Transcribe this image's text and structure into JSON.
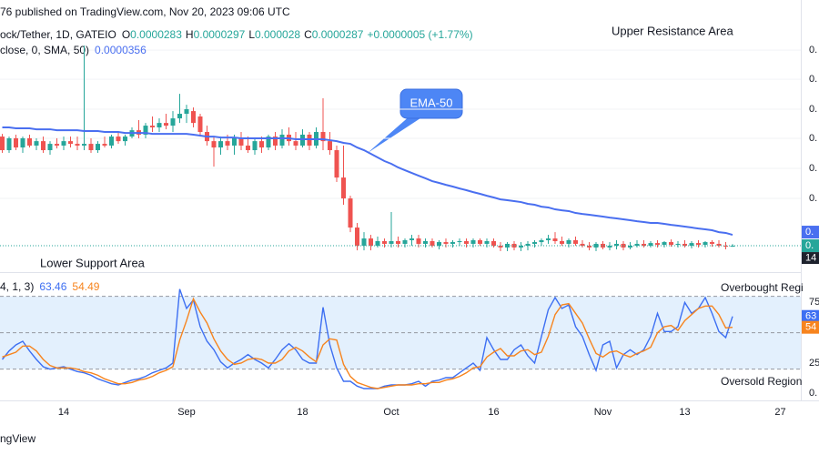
{
  "header": {
    "published": "76 published on TradingView.com, Nov 20, 2023 09:06 UTC",
    "symbol": "ock/Tether, 1D, GATEIO",
    "ohlc_labels": [
      "O",
      "H",
      "L",
      "C"
    ],
    "change": "+0.0000005 (+1.77%)"
  },
  "footer": {
    "brand": "ngView"
  },
  "chart_data": [
    {
      "type": "candlestick",
      "up_color": "#26a69a",
      "down_color": "#ef5350",
      "xlim": [
        -0.3333,
        117
      ],
      "ylim": [
        2.01e-05,
        0.000161
      ],
      "grid": true,
      "yticks": [
        {
          "value": 0.0001523,
          "label": "0."
        },
        {
          "value": 0.0001339,
          "label": "0."
        },
        {
          "value": 0.000115,
          "label": "0."
        },
        {
          "value": 9.66e-05,
          "label": "0."
        },
        {
          "value": 7.76e-05,
          "label": "0."
        },
        {
          "value": 5.86e-05,
          "label": "0."
        }
      ],
      "ema_tag": "0.",
      "price_tag": "0.",
      "countdown": "14",
      "annotations": [
        "Upper Resistance Area",
        "Lower Support Area",
        "EMA-50"
      ],
      "ohlc": [
        [
          9.77e-05,
          9.94e-05,
          8.74e-05,
          8.91e-05
        ],
        [
          8.91e-05,
          9.77e-05,
          8.74e-05,
          9.66e-05
        ],
        [
          9.66e-05,
          9.89e-05,
          8.91e-05,
          9.08e-05
        ],
        [
          9.08e-05,
          9.77e-05,
          8.74e-05,
          9.66e-05
        ],
        [
          9.66e-05,
          9.89e-05,
          9.08e-05,
          9.2e-05
        ],
        [
          9.2e-05,
          9.66e-05,
          8.91e-05,
          9.48e-05
        ],
        [
          9.48e-05,
          9.77e-05,
          8.74e-05,
          8.91e-05
        ],
        [
          8.91e-05,
          9.48e-05,
          8.62e-05,
          9.31e-05
        ],
        [
          9.31e-05,
          9.66e-05,
          9.02e-05,
          9.2e-05
        ],
        [
          9.2e-05,
          9.77e-05,
          8.91e-05,
          9.48e-05
        ],
        [
          9.48e-05,
          9.77e-05,
          9.08e-05,
          9.31e-05
        ],
        [
          9.31e-05,
          9.77e-05,
          8.91e-05,
          9.2e-05
        ],
        [
          9.2e-05,
          0.0001552,
          8.91e-05,
          9.31e-05
        ],
        [
          9.31e-05,
          9.66e-05,
          8.74e-05,
          8.91e-05
        ],
        [
          8.91e-05,
          9.48e-05,
          8.74e-05,
          9.31e-05
        ],
        [
          9.31e-05,
          9.77e-05,
          9.08e-05,
          9.2e-05
        ],
        [
          9.2e-05,
          9.89e-05,
          9.02e-05,
          9.77e-05
        ],
        [
          9.77e-05,
          0.0001006,
          9.31e-05,
          9.48e-05
        ],
        [
          9.48e-05,
          9.89e-05,
          9.2e-05,
          9.77e-05
        ],
        [
          9.77e-05,
          0.0001035,
          9.66e-05,
          0.0001017
        ],
        [
          0.0001017,
          0.0001081,
          9.66e-05,
          9.89e-05
        ],
        [
          9.89e-05,
          0.0001063,
          9.66e-05,
          0.0001046
        ],
        [
          0.0001046,
          0.0001104,
          0.0001006,
          0.0001035
        ],
        [
          0.0001035,
          0.0001092,
          0.0001006,
          0.0001063
        ],
        [
          0.0001063,
          0.0001121,
          0.0001023,
          0.0001046
        ],
        [
          0.0001046,
          0.0001138,
          0.0001006,
          0.0001092
        ],
        [
          0.0001092,
          0.0001247,
          0.0001063,
          0.0001121
        ],
        [
          0.0001121,
          0.0001178,
          0.0001063,
          0.000115
        ],
        [
          0.0001138,
          0.0001161,
          0.0001035,
          0.0001063
        ],
        [
          0.0001104,
          0.0001121,
          9.77e-05,
          0.0001006
        ],
        [
          0.0001006,
          0.0001046,
          9.2e-05,
          9.48e-05
        ],
        [
          9.48e-05,
          9.77e-05,
          7.87e-05,
          9.08e-05
        ],
        [
          9.08e-05,
          9.77e-05,
          8.62e-05,
          9.48e-05
        ],
        [
          9.48e-05,
          9.89e-05,
          8.91e-05,
          9.2e-05
        ],
        [
          9.2e-05,
          9.89e-05,
          8.62e-05,
          9.66e-05
        ],
        [
          9.66e-05,
          0.0001006,
          8.91e-05,
          9.2e-05
        ],
        [
          9.2e-05,
          9.77e-05,
          8.74e-05,
          8.91e-05
        ],
        [
          8.91e-05,
          9.66e-05,
          8.62e-05,
          9.48e-05
        ],
        [
          9.48e-05,
          9.77e-05,
          8.74e-05,
          9.08e-05
        ],
        [
          9.08e-05,
          9.89e-05,
          8.91e-05,
          9.77e-05
        ],
        [
          9.77e-05,
          0.0001006,
          8.91e-05,
          9.2e-05
        ],
        [
          9.2e-05,
          0.0001023,
          9.02e-05,
          9.89e-05
        ],
        [
          9.89e-05,
          0.0001035,
          9.2e-05,
          9.48e-05
        ],
        [
          9.48e-05,
          0.0001006,
          8.91e-05,
          9.2e-05
        ],
        [
          9.2e-05,
          0.0001023,
          9.08e-05,
          9.89e-05
        ],
        [
          9.89e-05,
          0.0001006,
          8.91e-05,
          9.2e-05
        ],
        [
          9.2e-05,
          0.0001035,
          9.02e-05,
          0.0001006
        ],
        [
          0.0001006,
          0.0001219,
          8.91e-05,
          9.48e-05
        ],
        [
          9.48e-05,
          0.0001006,
          8.62e-05,
          8.91e-05
        ],
        [
          8.91e-05,
          9.2e-05,
          6.9e-05,
          7.18e-05
        ],
        [
          7.18e-05,
          9.2e-05,
          5.46e-05,
          5.86e-05
        ],
        [
          5.86e-05,
          6.03e-05,
          3.73e-05,
          4.02e-05
        ],
        [
          4.02e-05,
          4.31e-05,
          2.58e-05,
          2.87e-05
        ],
        [
          2.87e-05,
          3.73e-05,
          2.58e-05,
          3.33e-05
        ],
        [
          3.33e-05,
          3.56e-05,
          2.58e-05,
          2.87e-05
        ],
        [
          2.87e-05,
          3.45e-05,
          2.76e-05,
          3.16e-05
        ],
        [
          3.16e-05,
          3.33e-05,
          2.76e-05,
          2.99e-05
        ],
        [
          2.99e-05,
          5e-05,
          2.76e-05,
          3.16e-05
        ],
        [
          3.16e-05,
          3.45e-05,
          2.76e-05,
          2.99e-05
        ],
        [
          2.99e-05,
          3.33e-05,
          2.76e-05,
          3.22e-05
        ],
        [
          3.22e-05,
          3.56e-05,
          2.87e-05,
          3.33e-05
        ],
        [
          3.33e-05,
          3.56e-05,
          2.76e-05,
          2.99e-05
        ],
        [
          2.99e-05,
          3.33e-05,
          2.76e-05,
          3.16e-05
        ],
        [
          3.16e-05,
          3.33e-05,
          2.76e-05,
          2.87e-05
        ],
        [
          2.87e-05,
          3.22e-05,
          2.64e-05,
          3.1e-05
        ],
        [
          3.1e-05,
          3.33e-05,
          2.76e-05,
          2.99e-05
        ],
        [
          2.99e-05,
          3.22e-05,
          2.76e-05,
          3.1e-05
        ],
        [
          3.1e-05,
          3.33e-05,
          2.87e-05,
          3.16e-05
        ],
        [
          3.16e-05,
          3.33e-05,
          2.76e-05,
          2.99e-05
        ],
        [
          2.99e-05,
          3.33e-05,
          2.76e-05,
          3.22e-05
        ],
        [
          3.22e-05,
          3.33e-05,
          2.87e-05,
          2.99e-05
        ],
        [
          2.99e-05,
          3.33e-05,
          2.76e-05,
          3.16e-05
        ],
        [
          3.16e-05,
          3.33e-05,
          2.76e-05,
          2.87e-05
        ],
        [
          2.87e-05,
          3.1e-05,
          2.53e-05,
          2.76e-05
        ],
        [
          2.76e-05,
          3.1e-05,
          2.53e-05,
          2.99e-05
        ],
        [
          2.99e-05,
          3.16e-05,
          2.58e-05,
          2.76e-05
        ],
        [
          2.76e-05,
          3.1e-05,
          2.53e-05,
          2.87e-05
        ],
        [
          2.87e-05,
          3.16e-05,
          2.58e-05,
          2.99e-05
        ],
        [
          2.99e-05,
          3.22e-05,
          2.76e-05,
          3.1e-05
        ],
        [
          3.1e-05,
          3.33e-05,
          2.87e-05,
          3.22e-05
        ],
        [
          3.22e-05,
          3.56e-05,
          2.99e-05,
          3.33e-05
        ],
        [
          3.33e-05,
          3.73e-05,
          2.99e-05,
          3.16e-05
        ],
        [
          3.16e-05,
          3.45e-05,
          2.87e-05,
          2.99e-05
        ],
        [
          2.99e-05,
          3.33e-05,
          2.76e-05,
          3.22e-05
        ],
        [
          3.22e-05,
          3.45e-05,
          2.87e-05,
          2.99e-05
        ],
        [
          2.99e-05,
          3.22e-05,
          2.76e-05,
          2.87e-05
        ],
        [
          2.87e-05,
          3.1e-05,
          2.58e-05,
          2.76e-05
        ],
        [
          2.76e-05,
          3.1e-05,
          2.53e-05,
          2.99e-05
        ],
        [
          2.99e-05,
          3.16e-05,
          2.64e-05,
          2.76e-05
        ],
        [
          2.76e-05,
          3.1e-05,
          2.58e-05,
          2.87e-05
        ],
        [
          2.87e-05,
          3.22e-05,
          2.64e-05,
          2.99e-05
        ],
        [
          2.99e-05,
          3.16e-05,
          2.58e-05,
          2.76e-05
        ],
        [
          2.76e-05,
          3.1e-05,
          2.64e-05,
          2.87e-05
        ],
        [
          2.87e-05,
          3.22e-05,
          2.76e-05,
          2.99e-05
        ],
        [
          2.99e-05,
          3.22e-05,
          2.76e-05,
          2.87e-05
        ],
        [
          2.87e-05,
          3.16e-05,
          2.76e-05,
          3.04e-05
        ],
        [
          3.04e-05,
          3.22e-05,
          2.76e-05,
          2.93e-05
        ],
        [
          2.93e-05,
          3.16e-05,
          2.76e-05,
          3.1e-05
        ],
        [
          3.1e-05,
          3.27e-05,
          2.81e-05,
          2.93e-05
        ],
        [
          2.93e-05,
          3.16e-05,
          2.76e-05,
          2.99e-05
        ],
        [
          2.99e-05,
          3.22e-05,
          2.76e-05,
          2.87e-05
        ],
        [
          2.87e-05,
          3.16e-05,
          2.7e-05,
          3.04e-05
        ],
        [
          3.04e-05,
          3.22e-05,
          2.76e-05,
          2.93e-05
        ],
        [
          2.93e-05,
          3.16e-05,
          2.76e-05,
          3.1e-05
        ],
        [
          3.1e-05,
          3.22e-05,
          2.81e-05,
          2.99e-05
        ],
        [
          2.99e-05,
          3.22e-05,
          2.76e-05,
          2.87e-05
        ],
        [
          2.87e-05,
          3.1e-05,
          2.64e-05,
          2.81e-05
        ],
        [
          2.83e-05,
          2.97e-05,
          2.8e-05,
          2.87e-05
        ]
      ],
      "ema": {
        "label": "close, 0, SMA, 50)",
        "color": "#4a6ff0",
        "values": [
          0.0001035,
          0.0001035,
          0.0001029,
          0.0001029,
          0.0001029,
          0.0001023,
          0.0001023,
          0.0001023,
          0.0001017,
          0.0001017,
          0.0001017,
          0.0001017,
          0.0001012,
          0.0001012,
          0.0001012,
          0.0001006,
          0.0001006,
          0.0001006,
          0.0001,
          0.0001,
          0.0001,
          0.0001,
          9.94e-05,
          9.94e-05,
          9.94e-05,
          9.94e-05,
          9.94e-05,
          9.94e-05,
          9.89e-05,
          9.83e-05,
          9.77e-05,
          9.77e-05,
          9.71e-05,
          9.71e-05,
          9.71e-05,
          9.66e-05,
          9.66e-05,
          9.66e-05,
          9.66e-05,
          9.66e-05,
          9.66e-05,
          9.66e-05,
          9.66e-05,
          9.6e-05,
          9.6e-05,
          9.6e-05,
          9.6e-05,
          9.6e-05,
          9.54e-05,
          9.48e-05,
          9.37e-05,
          9.31e-05,
          9.08e-05,
          8.91e-05,
          8.68e-05,
          8.45e-05,
          8.22e-05,
          8.05e-05,
          7.82e-05,
          7.64e-05,
          7.47e-05,
          7.3e-05,
          7.13e-05,
          6.95e-05,
          6.84e-05,
          6.72e-05,
          6.61e-05,
          6.49e-05,
          6.38e-05,
          6.26e-05,
          6.15e-05,
          6.03e-05,
          5.92e-05,
          5.8e-05,
          5.75e-05,
          5.69e-05,
          5.63e-05,
          5.52e-05,
          5.46e-05,
          5.34e-05,
          5.29e-05,
          5.17e-05,
          5.11e-05,
          5.06e-05,
          4.94e-05,
          4.88e-05,
          4.83e-05,
          4.77e-05,
          4.71e-05,
          4.65e-05,
          4.6e-05,
          4.54e-05,
          4.48e-05,
          4.42e-05,
          4.37e-05,
          4.31e-05,
          4.31e-05,
          4.25e-05,
          4.19e-05,
          4.14e-05,
          4.08e-05,
          4.02e-05,
          3.96e-05,
          3.91e-05,
          3.85e-05,
          3.73e-05,
          3.68e-05,
          3.56e-05
        ]
      }
    },
    {
      "type": "line",
      "legend_label": "4, 1, 3)",
      "xlim": [
        -0.3333,
        117
      ],
      "ylim": [
        -5,
        100
      ],
      "yticks": [
        75,
        25,
        {
          "value": 0,
          "label": "0."
        }
      ],
      "hlines": [
        80,
        50,
        20
      ],
      "band_color": "#e3f0fd",
      "annotations": [
        "Overbought Regi",
        "Oversold Region"
      ],
      "xticks": [
        {
          "value": 9,
          "label": "14"
        },
        {
          "value": 27,
          "label": "Sep"
        },
        {
          "value": 44,
          "label": "18"
        },
        {
          "value": 57,
          "label": "Oct"
        },
        {
          "value": 72,
          "label": "16"
        },
        {
          "value": 88,
          "label": "Nov"
        },
        {
          "value": 100,
          "label": "13"
        },
        {
          "value": 114,
          "label": "27"
        }
      ],
      "series": [
        {
          "color": "#3d6ff2",
          "tag": "63",
          "values": [
            28,
            35,
            40,
            43,
            35,
            28,
            22,
            20,
            21,
            22,
            20,
            18,
            17,
            15,
            12,
            10,
            8,
            7,
            9,
            11,
            12,
            14,
            17,
            19,
            21,
            25,
            86,
            70,
            77,
            55,
            43,
            36,
            26,
            21,
            25,
            28,
            32,
            28,
            25,
            21,
            28,
            36,
            41,
            36,
            28,
            25,
            25,
            71,
            40,
            21,
            10,
            10,
            6,
            4,
            4,
            4,
            6,
            7,
            7,
            7,
            8,
            10,
            6,
            10,
            11,
            13,
            13,
            17,
            21,
            25,
            19,
            46,
            36,
            28,
            28,
            36,
            40,
            31,
            25,
            47,
            69,
            79,
            70,
            73,
            55,
            47,
            32,
            19,
            40,
            43,
            21,
            32,
            36,
            32,
            36,
            47,
            66,
            51,
            51,
            55,
            75,
            66,
            70,
            79,
            66,
            51,
            46,
            63.46
          ]
        },
        {
          "color": "#f7841e",
          "tag": "54",
          "values": [
            30,
            32,
            34,
            39,
            39,
            35,
            28,
            23,
            21,
            21,
            21,
            20,
            18,
            17,
            15,
            12,
            10,
            8,
            8,
            9,
            11,
            12,
            14,
            17,
            19,
            22,
            44,
            60,
            78,
            67,
            58,
            45,
            35,
            28,
            24,
            25,
            28,
            29,
            28,
            25,
            25,
            28,
            35,
            38,
            35,
            30,
            26,
            40,
            45,
            44,
            24,
            14,
            9,
            7,
            5,
            4,
            5,
            6,
            7,
            7,
            7,
            8,
            8,
            9,
            9,
            11,
            12,
            14,
            17,
            21,
            22,
            30,
            34,
            37,
            31,
            31,
            35,
            36,
            32,
            34,
            47,
            65,
            73,
            74,
            66,
            58,
            45,
            33,
            30,
            34,
            35,
            32,
            30,
            33,
            35,
            38,
            50,
            55,
            56,
            52,
            60,
            65,
            70,
            72,
            72,
            65,
            54,
            54.49
          ]
        }
      ]
    }
  ]
}
